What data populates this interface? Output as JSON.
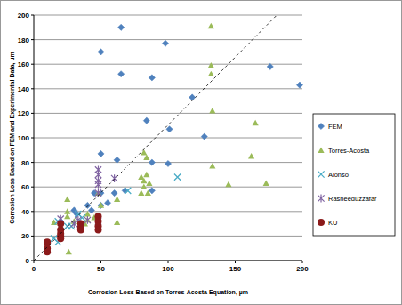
{
  "chart_data": {
    "type": "scatter",
    "x_label": "Corrosion Loss Based on  Torres-Acosta Equation, µm",
    "y_label": "Corrosion Loss Based on FEM and Experimental Data, µm",
    "xlim": [
      0,
      200
    ],
    "ylim": [
      0,
      200
    ],
    "xticks": [
      0,
      50,
      100,
      150,
      200
    ],
    "yticks": [
      0,
      20,
      40,
      60,
      80,
      100,
      120,
      140,
      160,
      180,
      200
    ],
    "grid": true,
    "legend": "right",
    "series": [
      {
        "name": "FEM",
        "color": "#4f81bd",
        "marker": "diamond",
        "x": [
          50,
          65,
          65,
          98,
          88,
          118,
          127,
          176,
          198,
          84,
          101,
          88,
          100,
          88,
          62,
          50,
          50,
          45,
          40,
          55,
          50,
          60,
          68,
          43,
          30,
          32,
          20
        ],
        "values": [
          170,
          190,
          152,
          177,
          149,
          133,
          101,
          158,
          143,
          114,
          107,
          80,
          79,
          57,
          82,
          87,
          55,
          55,
          45,
          47,
          45,
          55,
          57,
          41,
          41,
          38,
          32
        ]
      },
      {
        "name": "Torres-Acosta",
        "color": "#9bbb59",
        "marker": "triangle",
        "x": [
          132,
          132,
          132,
          133,
          133,
          145,
          162,
          165,
          173,
          82,
          84,
          80,
          84,
          82,
          86,
          82,
          85,
          80,
          62,
          62,
          50,
          48,
          40,
          40,
          38,
          25,
          26,
          15,
          20,
          25,
          25,
          30,
          35,
          45
        ],
        "values": [
          191,
          159,
          152,
          122,
          77,
          62,
          85,
          112,
          63,
          88,
          84,
          68,
          70,
          65,
          63,
          60,
          55,
          55,
          50,
          31,
          45,
          55,
          33,
          38,
          30,
          50,
          7,
          31,
          28,
          36,
          40,
          32,
          30,
          35
        ]
      },
      {
        "name": "Alonso",
        "color": "#4bacc6",
        "marker": "x",
        "x": [
          107,
          70,
          33,
          36,
          18,
          20,
          25,
          15,
          18,
          28
        ],
        "values": [
          68,
          57,
          38,
          35,
          32,
          28,
          28,
          18,
          15,
          28
        ]
      },
      {
        "name": "Rasheeduzzafar",
        "color": "#8064a2",
        "marker": "star",
        "x": [
          48,
          48,
          48,
          48,
          60,
          20,
          48,
          33,
          35,
          40,
          48,
          30
        ],
        "values": [
          74,
          70,
          65,
          62,
          67,
          34,
          32,
          33,
          30,
          33,
          55,
          30
        ]
      },
      {
        "name": "KU",
        "color": "#8b1a1a",
        "marker": "circle",
        "x": [
          10,
          10,
          10,
          20,
          20,
          20,
          20,
          20,
          48,
          48,
          48,
          48,
          35,
          35,
          35
        ],
        "values": [
          15,
          10,
          7,
          30,
          25,
          22,
          20,
          18,
          36,
          32,
          28,
          25,
          30,
          27,
          25
        ]
      },
      {
        "type": "line",
        "color": "#000000",
        "line_style": "dashed",
        "x": [
          0,
          181
        ],
        "values": [
          0,
          200
        ]
      }
    ]
  }
}
